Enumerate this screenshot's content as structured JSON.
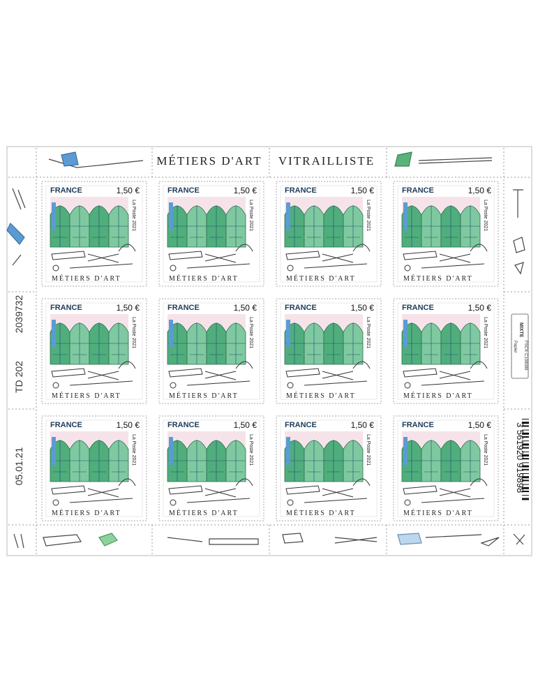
{
  "sheet": {
    "title_left": "MÉTIERS D'ART",
    "title_right": "VITRAILLISTE",
    "code_1": "TD 202",
    "code_2": "2039732",
    "date": "05.01.21",
    "barcode": "3 561920 919898",
    "fsc": {
      "line1": "MIXTE",
      "line2": "Papier",
      "line3": "FSC® C108089"
    }
  },
  "stamp": {
    "country": "FRANCE",
    "value": "1,50 €",
    "publisher": "La Poste 2021",
    "series": "MÉTIERS D'ART"
  }
}
